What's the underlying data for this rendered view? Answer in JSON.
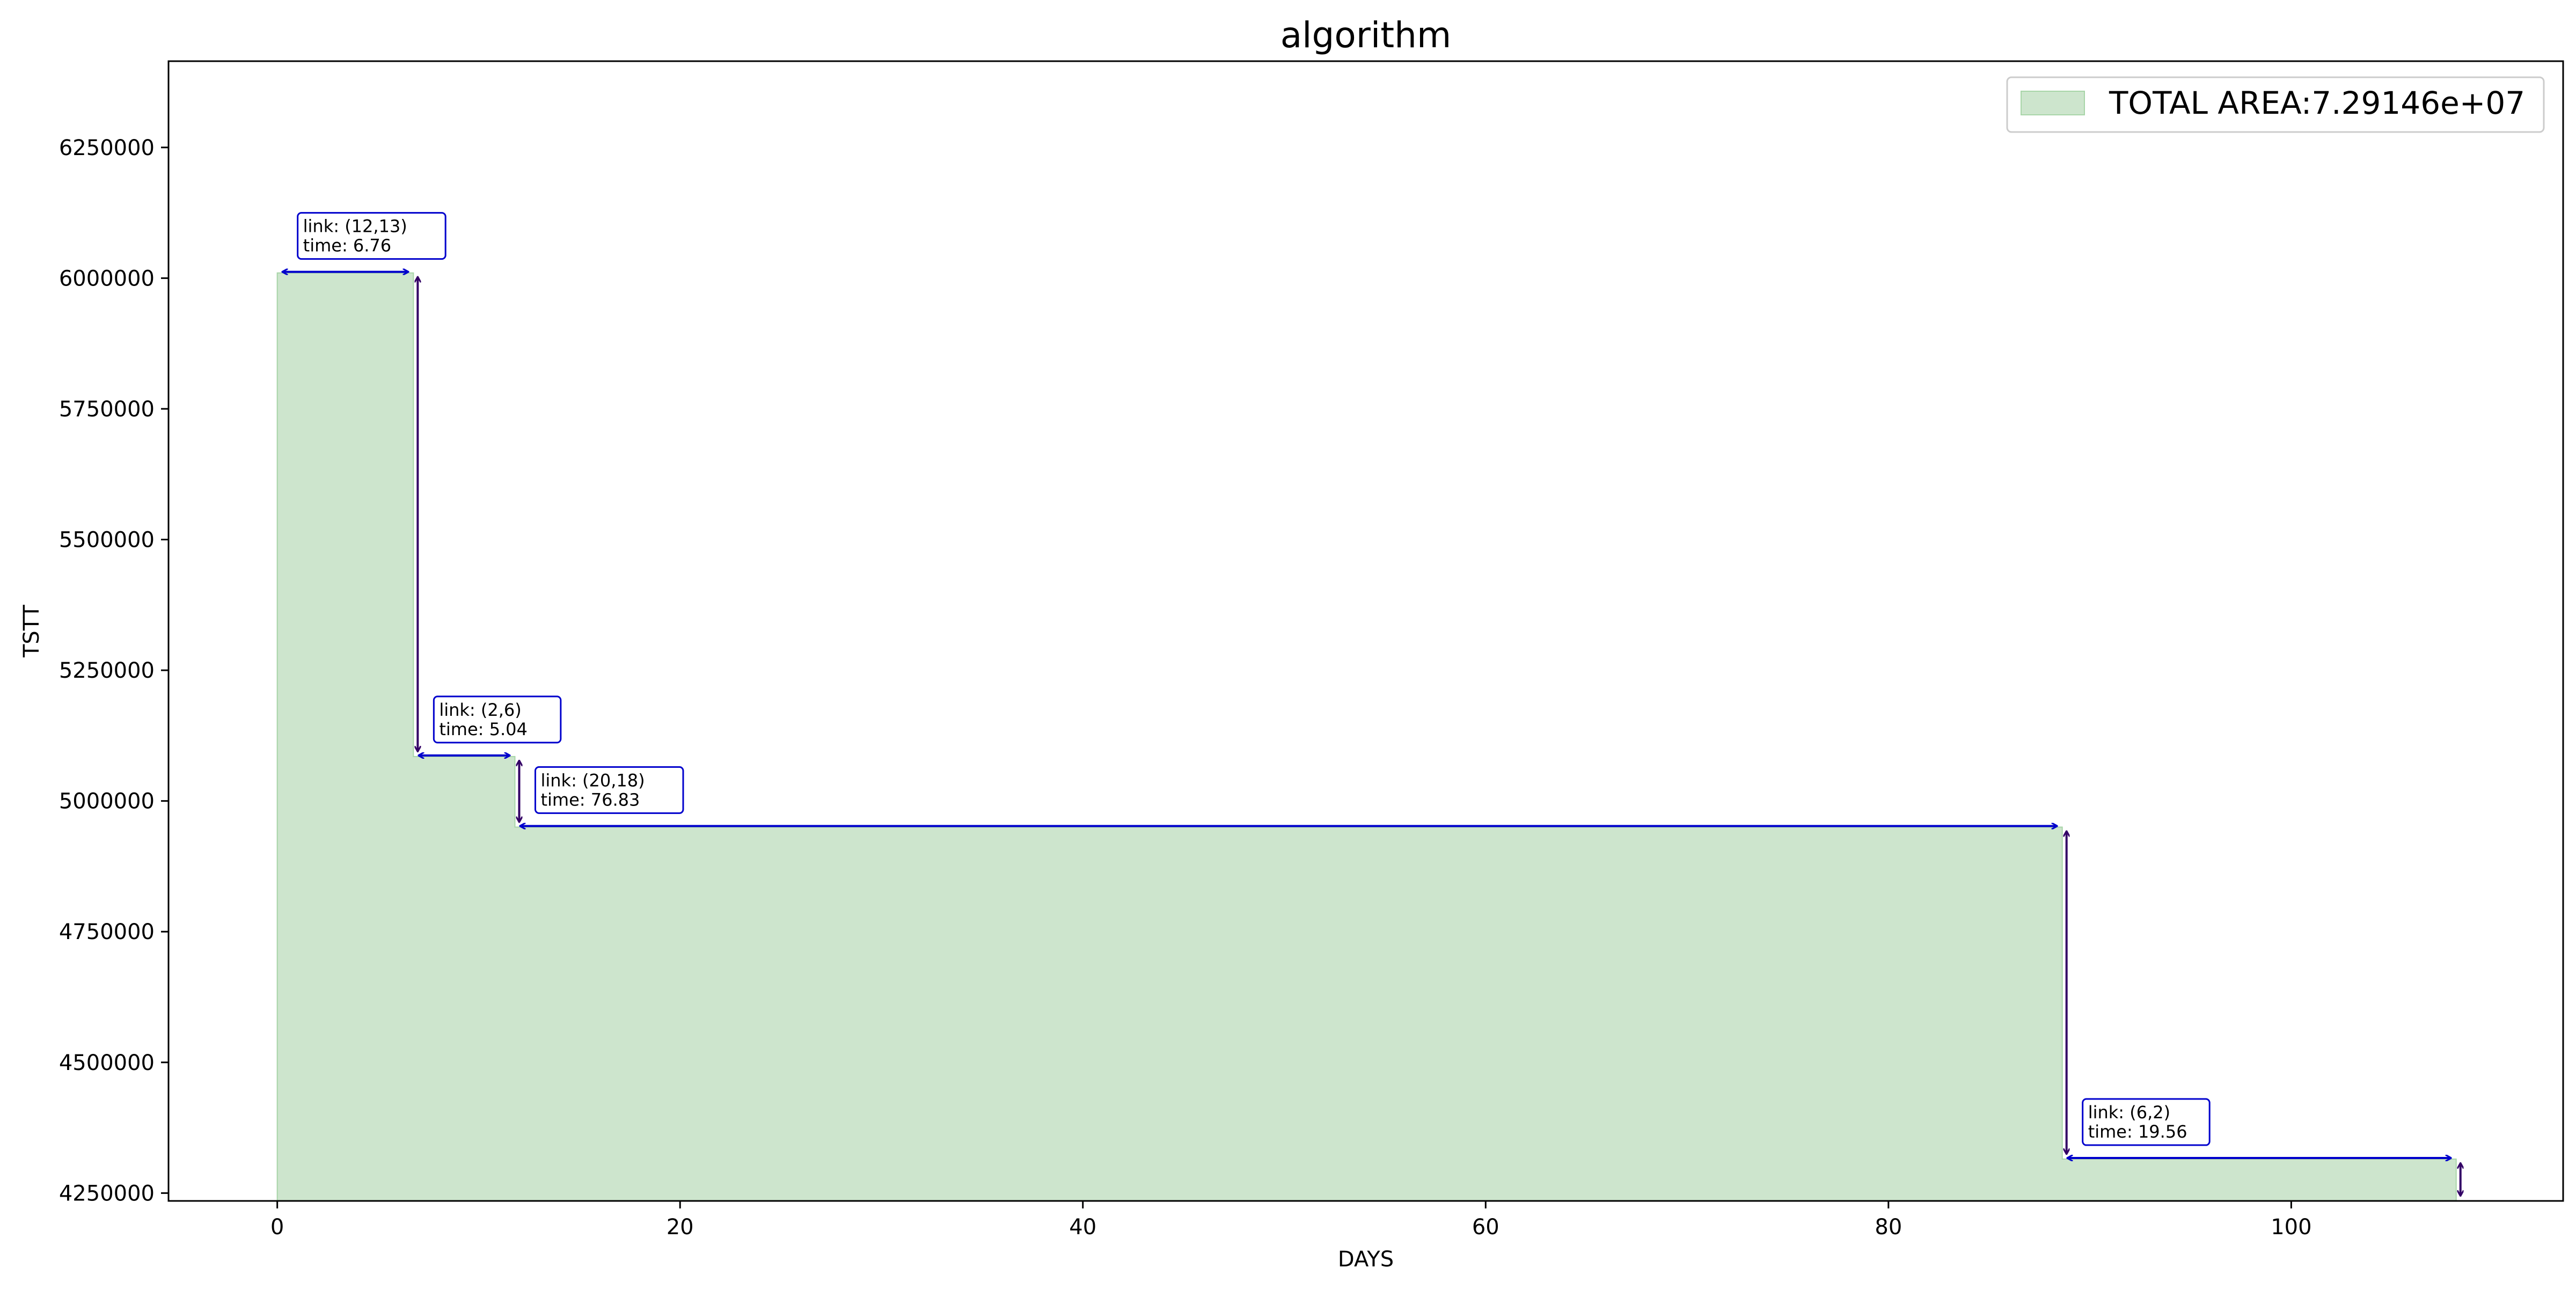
{
  "chart_data": {
    "type": "area",
    "title": "algorithm",
    "xlabel": "DAYS",
    "ylabel": "TSTT",
    "xlim": [
      -5.4,
      113.5
    ],
    "ylim": [
      4235000,
      6415000
    ],
    "grid": false,
    "legend_position": "top-right",
    "x_ticks": [
      0,
      20,
      40,
      60,
      80,
      100
    ],
    "x_tick_labels": [
      "0",
      "20",
      "40",
      "60",
      "80",
      "100"
    ],
    "y_ticks": [
      4250000,
      4500000,
      4750000,
      5000000,
      5250000,
      5500000,
      5750000,
      6000000,
      6250000
    ],
    "y_tick_labels": [
      "4250000",
      "4500000",
      "4750000",
      "5000000",
      "5250000",
      "5500000",
      "5750000",
      "6000000",
      "6250000"
    ],
    "series": [
      {
        "name": "TOTAL AREA:7.29146e+07",
        "legend_label": "TOTAL AREA:7.29146e+07",
        "color": "#cde5cd",
        "edge_color": "#a8d5a8",
        "x": [
          0,
          6.76,
          6.76,
          11.8,
          11.8,
          88.63,
          88.63,
          108.19,
          108.19
        ],
        "y": [
          6010000,
          6010000,
          5085000,
          5085000,
          4950000,
          4950000,
          4315000,
          4315000,
          4235000
        ]
      }
    ],
    "annotations": [
      {
        "link_text": "link: (12,13)",
        "time_text": "time: 6.76",
        "x_start": 0,
        "x_end": 6.76,
        "y_level": 6010000,
        "y_drop_to": 5085000
      },
      {
        "link_text": "link: (2,6)",
        "time_text": "time: 5.04",
        "x_start": 6.76,
        "x_end": 11.8,
        "y_level": 5085000,
        "y_drop_to": 4950000
      },
      {
        "link_text": "link: (20,18)",
        "time_text": "time: 76.83",
        "x_start": 11.8,
        "x_end": 88.63,
        "y_level": 4950000,
        "y_drop_to": 4315000
      },
      {
        "link_text": "link: (6,2)",
        "time_text": "time: 19.56",
        "x_start": 88.63,
        "x_end": 108.19,
        "y_level": 4315000,
        "y_drop_to": 4235000
      }
    ],
    "colors": {
      "arrow_horizontal": "#0000cc",
      "arrow_vertical": "#330066",
      "annotation_border": "#0000cc"
    }
  }
}
